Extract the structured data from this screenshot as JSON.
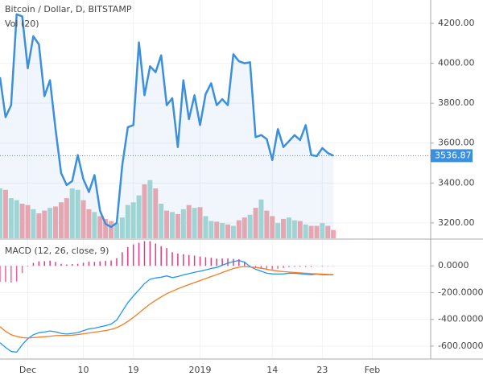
{
  "chart_data": [
    {
      "type": "line",
      "title": "Bitcoin / Dollar, D, BITSTAMP",
      "subtitle": "Vol (20)",
      "grid": true,
      "xlim": [
        0,
        77.5
      ],
      "xticks": [
        {
          "value": 5,
          "label": "Dec"
        },
        {
          "value": 15,
          "label": "10"
        },
        {
          "value": 24,
          "label": "19"
        },
        {
          "value": 36,
          "label": "2019"
        },
        {
          "value": 49,
          "label": "14"
        },
        {
          "value": 58,
          "label": "23"
        },
        {
          "value": 67,
          "label": "Feb"
        }
      ],
      "ylim": [
        3123,
        4317
      ],
      "yticks": [
        {
          "value": 3200,
          "label": "3200.00"
        },
        {
          "value": 3400,
          "label": "3400.00"
        },
        {
          "value": 3600,
          "label": "3600.00"
        },
        {
          "value": 3800,
          "label": "3800.00"
        },
        {
          "value": 4000,
          "label": "4000.00"
        },
        {
          "value": 4200,
          "label": "4200.00"
        }
      ],
      "series": [
        {
          "color": "#3b8fdc",
          "values": [
            3930,
            3730,
            3790,
            4245,
            4235,
            3975,
            4135,
            4095,
            3835,
            3915,
            3670,
            3450,
            3390,
            3410,
            3540,
            3420,
            3355,
            3440,
            3260,
            3195,
            3180,
            3200,
            3490,
            3680,
            3690,
            4105,
            3840,
            3985,
            3955,
            4040,
            3790,
            3825,
            3580,
            3915,
            3720,
            3840,
            3690,
            3845,
            3900,
            3790,
            3820,
            3790,
            4045,
            4010,
            4000,
            4005,
            3630,
            3640,
            3620,
            3515,
            3670,
            3580,
            3610,
            3640,
            3615,
            3690,
            3540,
            3535,
            3575,
            3550,
            3536.87
          ]
        }
      ],
      "volume": {
        "ylim": [
          0,
          100
        ],
        "up_color": "#a6dbd4",
        "down_color": "#f2a9ae",
        "values": [
          72,
          70,
          58,
          55,
          50,
          48,
          42,
          36,
          40,
          44,
          46,
          52,
          58,
          72,
          70,
          55,
          42,
          38,
          32,
          28,
          25,
          22,
          30,
          48,
          52,
          62,
          78,
          84,
          72,
          50,
          40,
          38,
          35,
          42,
          48,
          44,
          45,
          32,
          25,
          24,
          22,
          20,
          18,
          26,
          30,
          34,
          44,
          56,
          40,
          32,
          22,
          28,
          30,
          26,
          25,
          20,
          18,
          18,
          22,
          18,
          12
        ]
      }
    },
    {
      "type": "macd",
      "title": "MACD (12, 26, close, 9)",
      "ylim": [
        -697,
        200
      ],
      "yticks": [
        {
          "value": -600,
          "label": "-600.0000"
        },
        {
          "value": -400,
          "label": "-400.0000"
        },
        {
          "value": -200,
          "label": "-200.0000"
        },
        {
          "value": 0,
          "label": "0.0000"
        }
      ],
      "histogram": {
        "color": "#e0247a",
        "values": [
          -120,
          -120,
          -125,
          -117,
          -54,
          -5,
          22,
          33,
          35,
          39,
          29,
          15,
          10,
          13,
          15,
          23,
          31,
          30,
          34,
          37,
          40,
          57,
          102,
          140,
          160,
          172,
          185,
          185,
          167,
          147,
          133,
          102,
          92,
          87,
          82,
          77,
          70,
          65,
          60,
          54,
          55,
          55,
          52,
          50,
          33,
          3,
          -13,
          -22,
          -29,
          -27,
          -22,
          -17,
          -9,
          -7,
          -7,
          -8,
          -8,
          -2,
          -4,
          -3,
          -2
        ]
      },
      "series": [
        {
          "color": "#2196f3",
          "values": [
            -575,
            -610,
            -640,
            -645,
            -590,
            -545,
            -515,
            -500,
            -495,
            -487,
            -493,
            -505,
            -510,
            -505,
            -499,
            -485,
            -471,
            -466,
            -456,
            -447,
            -435,
            -405,
            -340,
            -275,
            -225,
            -180,
            -133,
            -100,
            -91,
            -85,
            -75,
            -88,
            -80,
            -68,
            -58,
            -48,
            -40,
            -30,
            -20,
            -12,
            5,
            20,
            32,
            40,
            28,
            -5,
            -25,
            -40,
            -55,
            -60,
            -61,
            -60,
            -55,
            -56,
            -59,
            -63,
            -66,
            -62,
            -66,
            -67,
            -67
          ]
        },
        {
          "color": "#f57c20",
          "values": [
            -455,
            -490,
            -515,
            -528,
            -536,
            -540,
            -537,
            -533,
            -530,
            -526,
            -522,
            -520,
            -520,
            -518,
            -514,
            -508,
            -502,
            -496,
            -490,
            -484,
            -475,
            -462,
            -442,
            -415,
            -385,
            -352,
            -318,
            -285,
            -258,
            -232,
            -208,
            -190,
            -172,
            -155,
            -140,
            -125,
            -110,
            -95,
            -80,
            -66,
            -50,
            -35,
            -20,
            -10,
            -5,
            -8,
            -12,
            -18,
            -26,
            -33,
            -39,
            -43,
            -46,
            -49,
            -52,
            -55,
            -58,
            -60,
            -62,
            -64,
            -65
          ]
        }
      ]
    }
  ]
}
